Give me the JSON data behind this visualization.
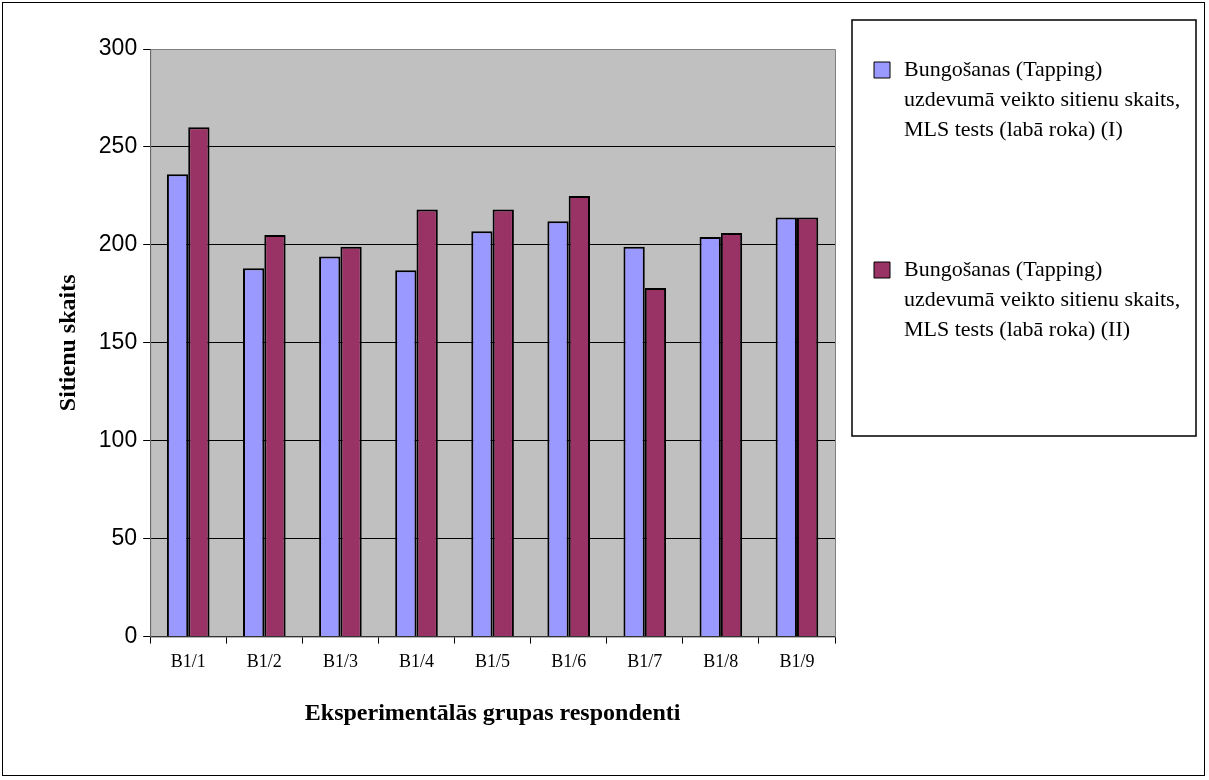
{
  "chart_data": {
    "type": "bar",
    "xlabel": "Eksperimentālās grupas respondenti",
    "ylabel": "Sitienu skaits",
    "categories": [
      "B1/1",
      "B1/2",
      "B1/3",
      "B1/4",
      "B1/5",
      "B1/6",
      "B1/7",
      "B1/8",
      "B1/9"
    ],
    "series": [
      {
        "name": "Bungošanas (Tapping) uzdevumā veikto sitienu skaits, MLS tests (labā roka) (I)",
        "color": "#9999ff",
        "values": [
          236,
          188,
          194,
          187,
          207,
          212,
          199,
          204,
          214
        ]
      },
      {
        "name": "Bungošanas (Tapping) uzdevumā veikto sitienu skaits, MLS tests (labā roka) (II)",
        "color": "#993366",
        "values": [
          260,
          205,
          199,
          218,
          218,
          225,
          178,
          206,
          214
        ]
      }
    ],
    "ylim": [
      0,
      300
    ],
    "yticks": [
      0,
      50,
      100,
      150,
      200,
      250,
      300
    ],
    "grid": "y",
    "legend": "right"
  }
}
